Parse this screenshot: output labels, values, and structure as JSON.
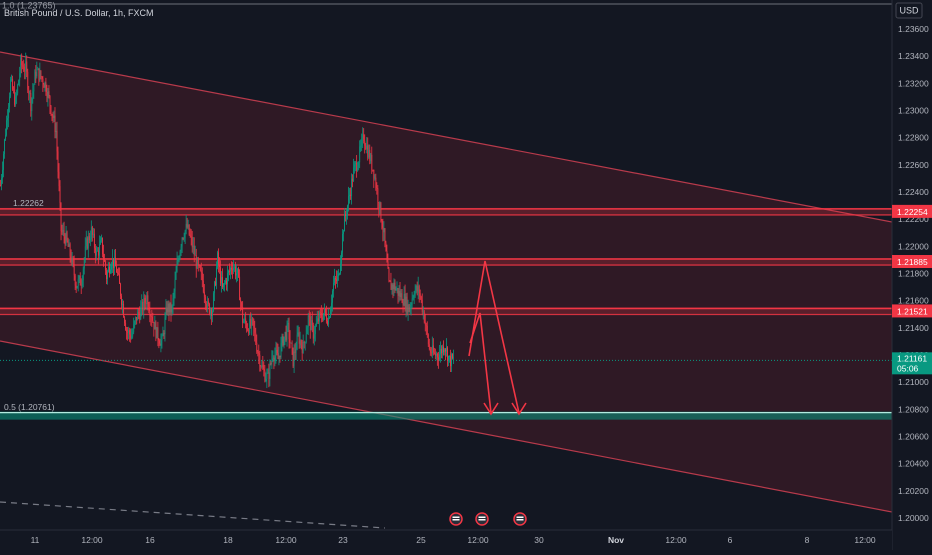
{
  "header": {
    "symbol_line": "British Pound / U.S. Dollar, 1h, FXCM",
    "top_level_label": "1.0 (1.23765)"
  },
  "price_axis": {
    "currency": "USD",
    "ticks": [
      "1.23600",
      "1.23400",
      "1.23200",
      "1.23000",
      "1.22800",
      "1.22600",
      "1.22400",
      "1.22200",
      "1.22000",
      "1.21800",
      "1.21600",
      "1.21400",
      "1.21200",
      "1.21000",
      "1.20800",
      "1.20600",
      "1.20400",
      "1.20200",
      "1.20000"
    ],
    "last_price": "1.21161",
    "countdown": "05:06",
    "level_tags": [
      "1.22254",
      "1.21885",
      "1.21521"
    ]
  },
  "time_axis": {
    "ticks": [
      "11",
      "12:00",
      "16",
      "18",
      "12:00",
      "23",
      "25",
      "12:00",
      "30",
      "Nov",
      "12:00",
      "6",
      "8",
      "12:00"
    ]
  },
  "drawings": {
    "left_level_label": "1.22262",
    "fib_label": "0.5 (1.20761)",
    "colors": {
      "support_line": "#089981",
      "resistance_line": "#f23645",
      "channel_fill": "#3a1b27",
      "channel_border": "#b83a4b",
      "arrows": "#f23645"
    }
  },
  "events": [
    {
      "icon": "flag-event-icon"
    },
    {
      "icon": "flag-event-icon"
    },
    {
      "icon": "flag-event-icon"
    }
  ],
  "chart_data": {
    "type": "candlestick",
    "symbol": "British Pound / U.S. Dollar",
    "interval": "1h",
    "ylim": [
      1.1995,
      1.2378
    ],
    "close_path": [
      1.2245,
      1.2285,
      1.2321,
      1.2306,
      1.2334,
      1.2331,
      1.2305,
      1.2329,
      1.2325,
      1.2318,
      1.2302,
      1.2285,
      1.2212,
      1.2205,
      1.2191,
      1.2172,
      1.2175,
      1.2201,
      1.2211,
      1.2194,
      1.2202,
      1.2178,
      1.2191,
      1.2183,
      1.2162,
      1.2138,
      1.2134,
      1.2148,
      1.2154,
      1.2163,
      1.2148,
      1.2135,
      1.2129,
      1.2155,
      1.2153,
      1.2186,
      1.2208,
      1.2214,
      1.2201,
      1.2185,
      1.2175,
      1.2155,
      1.2154,
      1.2191,
      1.2168,
      1.2178,
      1.2187,
      1.2179,
      1.2146,
      1.2141,
      1.2142,
      1.2123,
      1.2108,
      1.2103,
      1.2122,
      1.2117,
      1.2132,
      1.2139,
      1.2116,
      1.2134,
      1.2125,
      1.2147,
      1.2136,
      1.2146,
      1.2151,
      1.2147,
      1.2172,
      1.2177,
      1.2215,
      1.2234,
      1.2255,
      1.2265,
      1.2281,
      1.2268,
      1.2255,
      1.2232,
      1.2208,
      1.2171,
      1.2171,
      1.2165,
      1.2161,
      1.2154,
      1.2168,
      1.2167,
      1.2148,
      1.2124,
      1.212,
      1.2121,
      1.2128,
      1.2116
    ],
    "support_level": 1.20761,
    "resistance_levels": [
      1.22254,
      1.21885,
      1.21521
    ]
  }
}
